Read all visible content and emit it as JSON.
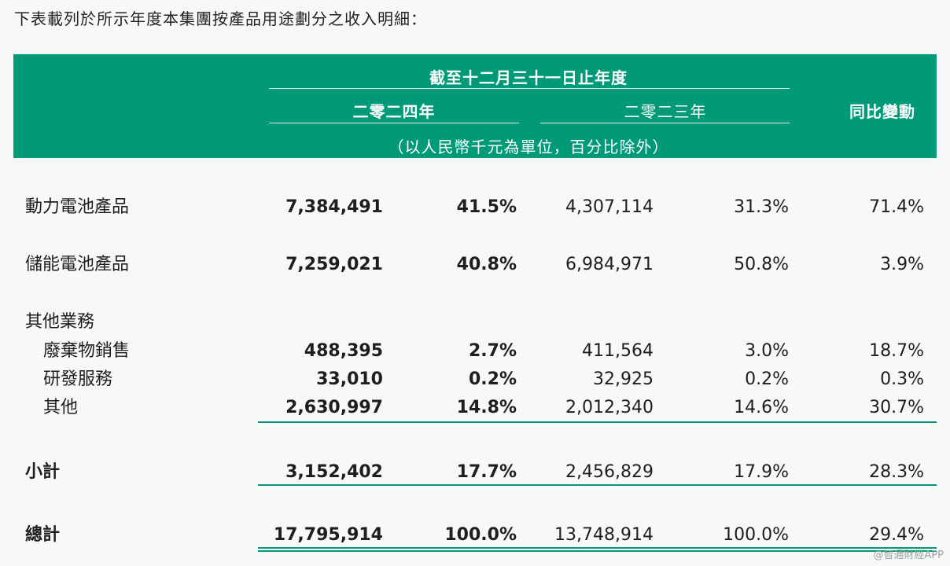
{
  "intro": "下表載列於所示年度本集團按產品用途劃分之收入明細：",
  "header": {
    "period": "截至十二月三十一日止年度",
    "year_2024": "二零二四年",
    "year_2023": "二零二三年",
    "unit": "（以人民幣千元為單位，百分比除外）",
    "yoy": "同比變動"
  },
  "rows": [
    {
      "label": "動力電池產品",
      "v2024": "7,384,491",
      "p2024": "41.5%",
      "v2023": "4,307,114",
      "p2023": "31.3%",
      "yoy": "71.4%"
    },
    {
      "label": "儲能電池產品",
      "v2024": "7,259,021",
      "p2024": "40.8%",
      "v2023": "6,984,971",
      "p2023": "50.8%",
      "yoy": "3.9%"
    },
    {
      "label": "其他業務"
    },
    {
      "label": "廢棄物銷售",
      "v2024": "488,395",
      "p2024": "2.7%",
      "v2023": "411,564",
      "p2023": "3.0%",
      "yoy": "18.7%"
    },
    {
      "label": "研發服務",
      "v2024": "33,010",
      "p2024": "0.2%",
      "v2023": "32,925",
      "p2023": "0.2%",
      "yoy": "0.3%"
    },
    {
      "label": "其他",
      "v2024": "2,630,997",
      "p2024": "14.8%",
      "v2023": "2,012,340",
      "p2023": "14.6%",
      "yoy": "30.7%"
    },
    {
      "label": "小計",
      "v2024": "3,152,402",
      "p2024": "17.7%",
      "v2023": "2,456,829",
      "p2023": "17.9%",
      "yoy": "28.3%"
    },
    {
      "label": "總計",
      "v2024": "17,795,914",
      "p2024": "100.0%",
      "v2023": "13,748,914",
      "p2023": "100.0%",
      "yoy": "29.4%"
    }
  ],
  "watermark": "@智通財經APP",
  "colors": {
    "header_bg": "#009a78",
    "rule": "#009a78"
  }
}
